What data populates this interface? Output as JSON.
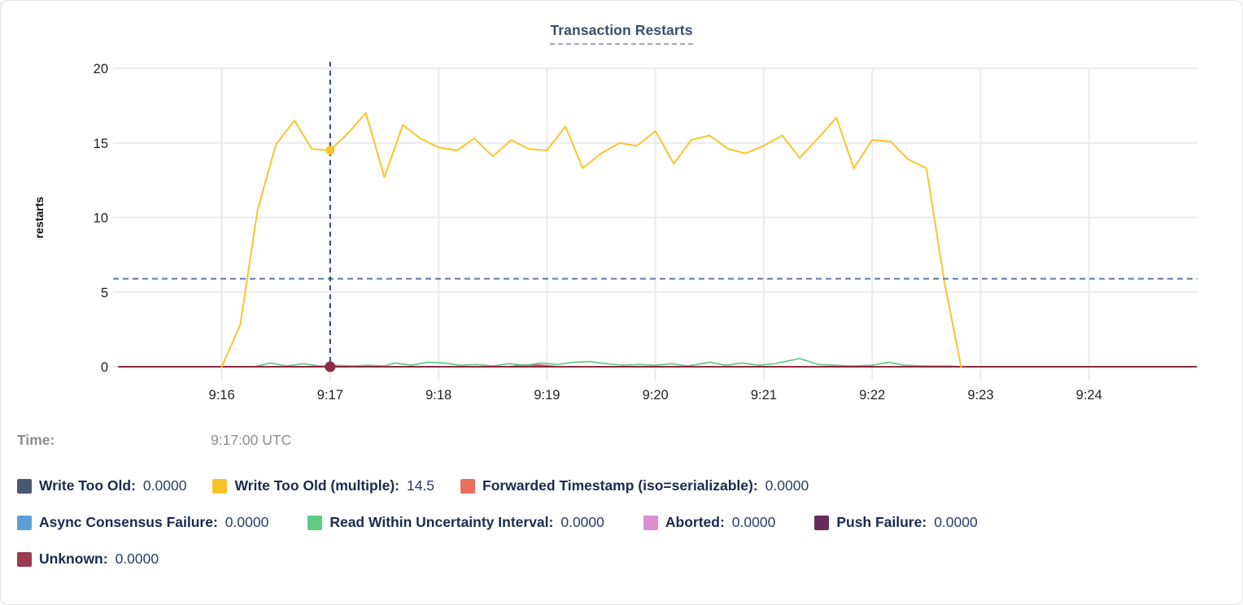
{
  "card": {
    "title": "Transaction Restarts"
  },
  "tooltip": {
    "time_label": "Time:",
    "time_value": "9:17:00 UTC"
  },
  "legend": {
    "items": [
      {
        "label": "Write Too Old:",
        "value": "0.0000",
        "color": "#475872"
      },
      {
        "label": "Write Too Old (multiple):",
        "value": "14.5",
        "color": "#F6C32B"
      },
      {
        "label": "Forwarded Timestamp (iso=serializable):",
        "value": "0.0000",
        "color": "#EA6F5F"
      },
      {
        "label": "Async Consensus Failure:",
        "value": "0.0000",
        "color": "#5C9FD8"
      },
      {
        "label": "Read Within Uncertainty Interval:",
        "value": "0.0000",
        "color": "#5FCB85"
      },
      {
        "label": "Aborted:",
        "value": "0.0000",
        "color": "#DB8FD0"
      },
      {
        "label": "Push Failure:",
        "value": "0.0000",
        "color": "#682A5E"
      },
      {
        "label": "Unknown:",
        "value": "0.0000",
        "color": "#9A3951"
      }
    ]
  },
  "chart_data": {
    "type": "line",
    "title": "Transaction Restarts",
    "xlabel": "",
    "ylabel": "restarts",
    "ylim": [
      0,
      20
    ],
    "x_domain": [
      15.05,
      25.0
    ],
    "grid": true,
    "legend_position": "bottom",
    "y_ticks": [
      {
        "v": 0,
        "label": "0"
      },
      {
        "v": 5,
        "label": "5"
      },
      {
        "v": 10,
        "label": "10"
      },
      {
        "v": 15,
        "label": "15"
      },
      {
        "v": 20,
        "label": "20"
      }
    ],
    "x_ticks": [
      {
        "t": 16,
        "label": "9:16"
      },
      {
        "t": 17,
        "label": "9:17"
      },
      {
        "t": 18,
        "label": "9:18"
      },
      {
        "t": 19,
        "label": "9:19"
      },
      {
        "t": 20,
        "label": "9:20"
      },
      {
        "t": 21,
        "label": "9:21"
      },
      {
        "t": 22,
        "label": "9:22"
      },
      {
        "t": 23,
        "label": "9:23"
      },
      {
        "t": 24,
        "label": "9:24"
      }
    ],
    "hover": {
      "t": 17,
      "time_text": "9:17:00 UTC",
      "hline_value": 5.9,
      "points": [
        {
          "series": "Write Too Old (multiple)",
          "value": 14.5,
          "color": "#F6C32B"
        },
        {
          "series": "Unknown",
          "value": 0,
          "color": "#8C2B43"
        }
      ]
    },
    "series": [
      {
        "name": "Write Too Old",
        "color": "#475872",
        "width": 1.5,
        "values": [
          [
            16.0,
            0
          ],
          [
            22.83,
            0
          ]
        ]
      },
      {
        "name": "Async Consensus Failure",
        "color": "#5C9FD8",
        "width": 1.5,
        "values": [
          [
            16.0,
            0
          ],
          [
            22.83,
            0
          ]
        ]
      },
      {
        "name": "Aborted",
        "color": "#DB8FD0",
        "width": 1.5,
        "values": [
          [
            16.0,
            0
          ],
          [
            22.83,
            0
          ]
        ]
      },
      {
        "name": "Push Failure",
        "color": "#682A5E",
        "width": 1.5,
        "values": [
          [
            16.0,
            0
          ],
          [
            22.83,
            0
          ]
        ]
      },
      {
        "name": "Forwarded Timestamp (iso=serializable)",
        "color": "#E05348",
        "width": 1.8,
        "values": [
          [
            15.05,
            0
          ],
          [
            18.65,
            0
          ],
          [
            18.8,
            0.12
          ],
          [
            18.95,
            0.1
          ],
          [
            19.1,
            0
          ],
          [
            22.83,
            0
          ]
        ]
      },
      {
        "name": "Read Within Uncertainty Interval",
        "color": "#5FCB85",
        "width": 1.7,
        "values": [
          [
            16.3,
            0
          ],
          [
            16.45,
            0.25
          ],
          [
            16.6,
            0.05
          ],
          [
            16.75,
            0.2
          ],
          [
            16.9,
            0.05
          ],
          [
            17.05,
            0.1
          ],
          [
            17.2,
            0.05
          ],
          [
            17.35,
            0.1
          ],
          [
            17.5,
            0.05
          ],
          [
            17.6,
            0.25
          ],
          [
            17.75,
            0.1
          ],
          [
            17.9,
            0.3
          ],
          [
            18.05,
            0.25
          ],
          [
            18.2,
            0.1
          ],
          [
            18.35,
            0.15
          ],
          [
            18.5,
            0.05
          ],
          [
            18.65,
            0.2
          ],
          [
            18.8,
            0.1
          ],
          [
            18.95,
            0.25
          ],
          [
            19.1,
            0.15
          ],
          [
            19.25,
            0.3
          ],
          [
            19.4,
            0.35
          ],
          [
            19.55,
            0.2
          ],
          [
            19.7,
            0.1
          ],
          [
            19.85,
            0.15
          ],
          [
            20.0,
            0.1
          ],
          [
            20.15,
            0.2
          ],
          [
            20.3,
            0.05
          ],
          [
            20.5,
            0.3
          ],
          [
            20.65,
            0.1
          ],
          [
            20.8,
            0.25
          ],
          [
            20.95,
            0.1
          ],
          [
            21.1,
            0.2
          ],
          [
            21.33,
            0.55
          ],
          [
            21.5,
            0.15
          ],
          [
            21.65,
            0.1
          ],
          [
            21.8,
            0.05
          ],
          [
            22.0,
            0.1
          ],
          [
            22.15,
            0.3
          ],
          [
            22.3,
            0.1
          ],
          [
            22.5,
            0.05
          ],
          [
            22.7,
            0.05
          ],
          [
            22.83,
            0
          ]
        ]
      },
      {
        "name": "Unknown",
        "color": "#8C2B43",
        "width": 2,
        "values": [
          [
            15.05,
            0
          ],
          [
            24.99,
            0
          ]
        ]
      },
      {
        "name": "Write Too Old (multiple)",
        "color": "#FBC32E",
        "width": 2,
        "values": [
          [
            16.0,
            0
          ],
          [
            16.17,
            2.8
          ],
          [
            16.33,
            10.5
          ],
          [
            16.5,
            14.9
          ],
          [
            16.67,
            16.5
          ],
          [
            16.83,
            14.6
          ],
          [
            17.0,
            14.5
          ],
          [
            17.17,
            15.7
          ],
          [
            17.33,
            17.0
          ],
          [
            17.5,
            12.7
          ],
          [
            17.67,
            16.2
          ],
          [
            17.83,
            15.3
          ],
          [
            18.0,
            14.7
          ],
          [
            18.17,
            14.5
          ],
          [
            18.33,
            15.3
          ],
          [
            18.5,
            14.1
          ],
          [
            18.67,
            15.2
          ],
          [
            18.83,
            14.6
          ],
          [
            19.0,
            14.5
          ],
          [
            19.17,
            16.1
          ],
          [
            19.33,
            13.3
          ],
          [
            19.5,
            14.3
          ],
          [
            19.67,
            15.0
          ],
          [
            19.83,
            14.8
          ],
          [
            20.0,
            15.8
          ],
          [
            20.17,
            13.6
          ],
          [
            20.33,
            15.2
          ],
          [
            20.5,
            15.5
          ],
          [
            20.67,
            14.6
          ],
          [
            20.83,
            14.3
          ],
          [
            21.0,
            14.8
          ],
          [
            21.17,
            15.5
          ],
          [
            21.33,
            14.0
          ],
          [
            21.5,
            15.3
          ],
          [
            21.67,
            16.7
          ],
          [
            21.83,
            13.3
          ],
          [
            22.0,
            15.2
          ],
          [
            22.17,
            15.1
          ],
          [
            22.33,
            13.9
          ],
          [
            22.5,
            13.3
          ],
          [
            22.67,
            5.5
          ],
          [
            22.82,
            0
          ]
        ]
      }
    ],
    "colors": {
      "gridline": "#ebebeb",
      "tick_text": "#222222",
      "hover_vline": "#2e4a72",
      "hover_hline": "#5b7da6"
    }
  }
}
